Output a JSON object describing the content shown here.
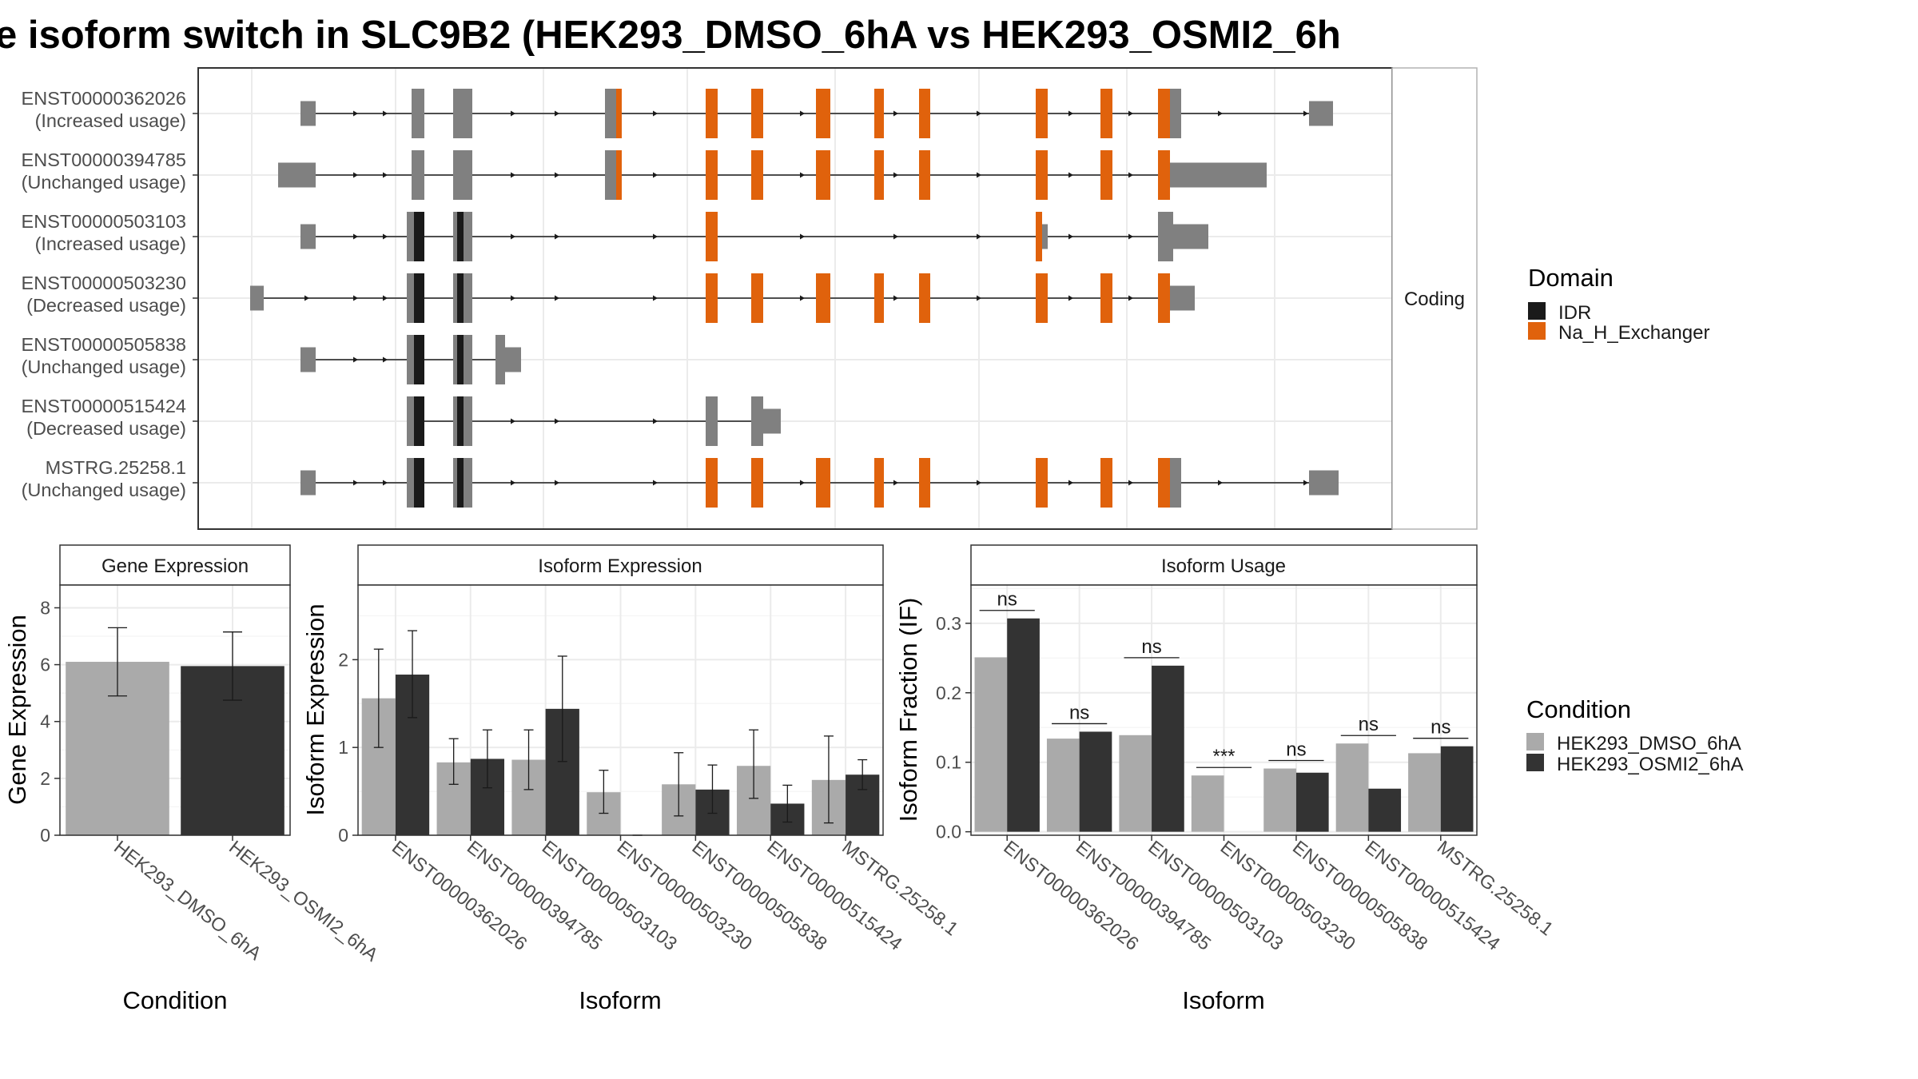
{
  "title": "e isoform switch in SLC9B2 (HEK293_DMSO_6hA vs HEK293_OSMI2_6h",
  "colors": {
    "idr": "#1a1a1a",
    "na_h_exchanger": "#e0620c",
    "utr": "#808080",
    "dmso": "#aaaaaa",
    "osmi2": "#333333"
  },
  "structure": {
    "facet_label": "Coding",
    "transcripts": [
      {
        "id": "ENST00000362026",
        "usage": "(Increased usage)"
      },
      {
        "id": "ENST00000394785",
        "usage": "(Unchanged usage)"
      },
      {
        "id": "ENST00000503103",
        "usage": "(Increased usage)"
      },
      {
        "id": "ENST00000503230",
        "usage": "(Decreased usage)"
      },
      {
        "id": "ENST00000505838",
        "usage": "(Unchanged usage)"
      },
      {
        "id": "ENST00000515424",
        "usage": "(Decreased usage)"
      },
      {
        "id": "MSTRG.25258.1",
        "usage": "(Unchanged usage)"
      }
    ]
  },
  "legends": {
    "domain": {
      "title": "Domain",
      "items": [
        {
          "label": "IDR",
          "color": "#1a1a1a"
        },
        {
          "label": "Na_H_Exchanger",
          "color": "#e0620c"
        }
      ]
    },
    "condition": {
      "title": "Condition",
      "items": [
        {
          "label": "HEK293_DMSO_6hA",
          "color": "#aaaaaa"
        },
        {
          "label": "HEK293_OSMI2_6hA",
          "color": "#333333"
        }
      ]
    }
  },
  "chart_data": [
    {
      "type": "bar",
      "title": "Gene Expression",
      "xlabel": "Condition",
      "ylabel": "Gene Expression",
      "categories": [
        "HEK293_DMSO_6hA",
        "HEK293_OSMI2_6hA"
      ],
      "values": [
        6.1,
        5.95
      ],
      "err_low": [
        4.9,
        4.75
      ],
      "err_high": [
        7.3,
        7.15
      ],
      "ylim": [
        0,
        8.8
      ],
      "yticks": [
        "0",
        "2",
        "4",
        "6",
        "8"
      ],
      "colors": [
        "#aaaaaa",
        "#333333"
      ]
    },
    {
      "type": "bar",
      "title": "Isoform Expression",
      "xlabel": "Isoform",
      "ylabel": "Isoform Expression",
      "categories": [
        "ENST00000362026",
        "ENST00000394785",
        "ENST00000503103",
        "ENST00000503230",
        "ENST00000505838",
        "ENST00000515424",
        "MSTRG.25258.1"
      ],
      "series": [
        {
          "name": "HEK293_DMSO_6hA",
          "values": [
            1.56,
            0.83,
            0.86,
            0.49,
            0.58,
            0.79,
            0.63
          ],
          "err_low": [
            1.0,
            0.58,
            0.52,
            0.25,
            0.22,
            0.42,
            0.14
          ],
          "err_high": [
            2.12,
            1.1,
            1.2,
            0.74,
            0.94,
            1.2,
            1.13
          ]
        },
        {
          "name": "HEK293_OSMI2_6hA",
          "values": [
            1.83,
            0.87,
            1.44,
            0.0,
            0.52,
            0.36,
            0.69
          ],
          "err_low": [
            1.34,
            0.54,
            0.84,
            0.0,
            0.25,
            0.15,
            0.52
          ],
          "err_high": [
            2.33,
            1.2,
            2.04,
            0.0,
            0.8,
            0.57,
            0.86
          ]
        }
      ],
      "ylim": [
        0,
        2.85
      ],
      "yticks": [
        "0",
        "1",
        "2"
      ]
    },
    {
      "type": "bar",
      "title": "Isoform Usage",
      "xlabel": "Isoform",
      "ylabel": "Isoform Fraction (IF)",
      "categories": [
        "ENST00000362026",
        "ENST00000394785",
        "ENST00000503103",
        "ENST00000503230",
        "ENST00000505838",
        "ENST00000515424",
        "MSTRG.25258.1"
      ],
      "series": [
        {
          "name": "HEK293_DMSO_6hA",
          "values": [
            0.251,
            0.134,
            0.139,
            0.081,
            0.091,
            0.127,
            0.113
          ]
        },
        {
          "name": "HEK293_OSMI2_6hA",
          "values": [
            0.307,
            0.144,
            0.239,
            0.0,
            0.085,
            0.062,
            0.123
          ]
        }
      ],
      "significance": [
        "ns",
        "ns",
        "ns",
        "***",
        "ns",
        "ns",
        "ns"
      ],
      "ylim": [
        -0.005,
        0.355
      ],
      "yticks": [
        "0.0",
        "0.1",
        "0.2",
        "0.3"
      ]
    }
  ]
}
